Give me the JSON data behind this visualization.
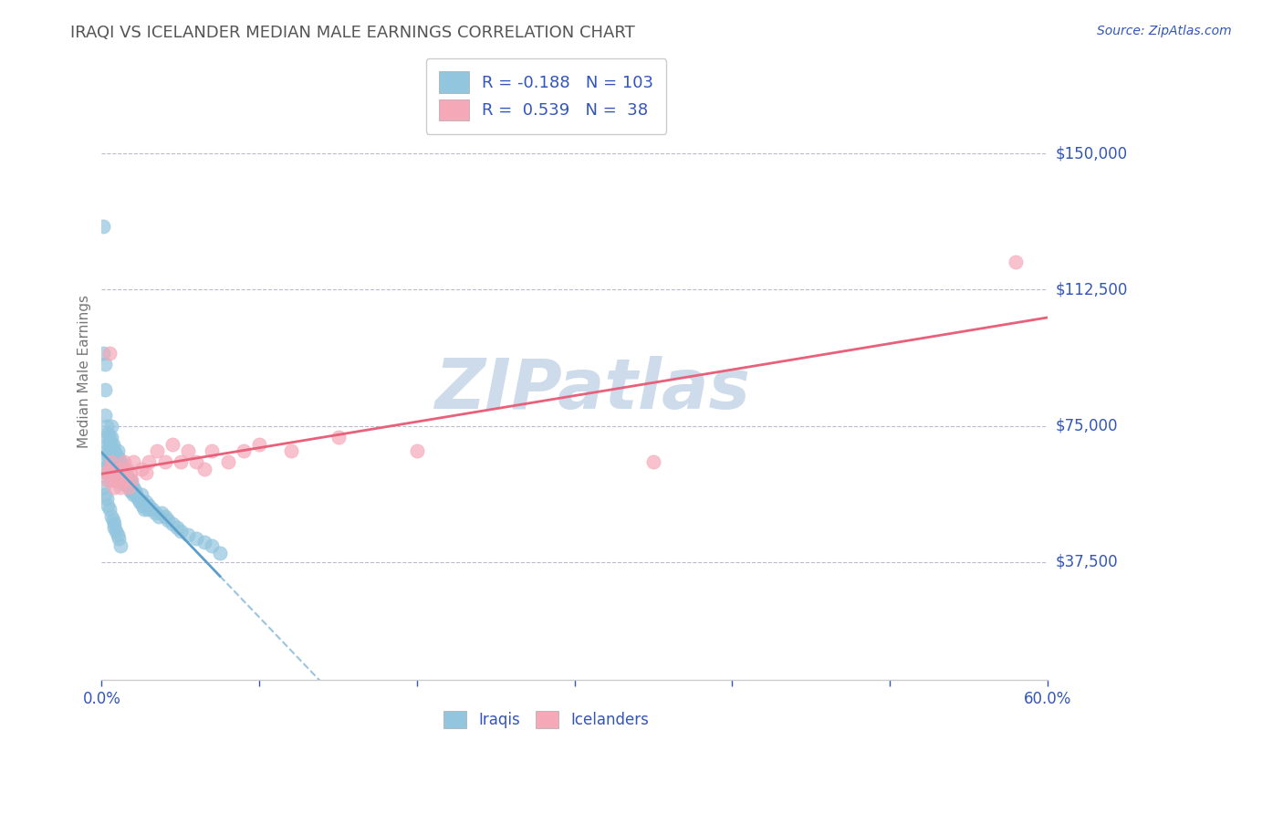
{
  "title": "IRAQI VS ICELANDER MEDIAN MALE EARNINGS CORRELATION CHART",
  "source_text": "Source: ZipAtlas.com",
  "ylabel": "Median Male Earnings",
  "xlim": [
    0.0,
    0.6
  ],
  "ylim": [
    5000,
    175000
  ],
  "yticks": [
    37500,
    75000,
    112500,
    150000
  ],
  "ytick_labels": [
    "$37,500",
    "$75,000",
    "$112,500",
    "$150,000"
  ],
  "xtick_labels": [
    "0.0%",
    "",
    "",
    "",
    "",
    "",
    "60.0%"
  ],
  "xticks": [
    0.0,
    0.1,
    0.2,
    0.3,
    0.4,
    0.5,
    0.6
  ],
  "iraqis_color": "#92C5DE",
  "icelanders_color": "#F4A8B8",
  "iraqis_line_color": "#5B9EC9",
  "icelanders_line_color": "#E8607A",
  "R_iraqis": -0.188,
  "N_iraqis": 103,
  "R_icelanders": 0.539,
  "N_icelanders": 38,
  "legend_label_iraqis": "Iraqis",
  "legend_label_icelanders": "Icelanders",
  "label_color": "#3355BB",
  "watermark_color": "#C5D5E8",
  "background_color": "#FFFFFF",
  "iraqis_x": [
    0.001,
    0.001,
    0.002,
    0.002,
    0.002,
    0.003,
    0.003,
    0.003,
    0.003,
    0.003,
    0.004,
    0.004,
    0.004,
    0.004,
    0.005,
    0.005,
    0.005,
    0.005,
    0.005,
    0.005,
    0.006,
    0.006,
    0.006,
    0.006,
    0.006,
    0.007,
    0.007,
    0.007,
    0.007,
    0.007,
    0.008,
    0.008,
    0.008,
    0.008,
    0.009,
    0.009,
    0.009,
    0.009,
    0.01,
    0.01,
    0.01,
    0.01,
    0.011,
    0.011,
    0.011,
    0.012,
    0.012,
    0.012,
    0.013,
    0.013,
    0.013,
    0.014,
    0.014,
    0.015,
    0.015,
    0.016,
    0.016,
    0.017,
    0.017,
    0.018,
    0.018,
    0.019,
    0.019,
    0.02,
    0.02,
    0.021,
    0.022,
    0.023,
    0.024,
    0.025,
    0.025,
    0.026,
    0.027,
    0.028,
    0.029,
    0.03,
    0.032,
    0.034,
    0.036,
    0.038,
    0.04,
    0.042,
    0.045,
    0.048,
    0.05,
    0.055,
    0.06,
    0.065,
    0.07,
    0.075,
    0.001,
    0.002,
    0.003,
    0.004,
    0.005,
    0.006,
    0.007,
    0.008,
    0.008,
    0.009,
    0.01,
    0.011,
    0.012
  ],
  "iraqis_y": [
    130000,
    95000,
    92000,
    85000,
    78000,
    75000,
    72000,
    68000,
    65000,
    62000,
    73000,
    70000,
    67000,
    64000,
    72000,
    70000,
    67000,
    65000,
    62000,
    60000,
    75000,
    72000,
    70000,
    67000,
    64000,
    70000,
    68000,
    65000,
    62000,
    60000,
    68000,
    65000,
    63000,
    60000,
    67000,
    65000,
    62000,
    60000,
    68000,
    65000,
    62000,
    60000,
    66000,
    64000,
    61000,
    65000,
    62000,
    60000,
    64000,
    62000,
    59000,
    63000,
    61000,
    62000,
    60000,
    61000,
    59000,
    60000,
    58000,
    60000,
    57000,
    59000,
    57000,
    58000,
    56000,
    57000,
    56000,
    55000,
    54000,
    56000,
    54000,
    53000,
    52000,
    54000,
    52000,
    53000,
    52000,
    51000,
    50000,
    51000,
    50000,
    49000,
    48000,
    47000,
    46000,
    45000,
    44000,
    43000,
    42000,
    40000,
    58000,
    56000,
    55000,
    53000,
    52000,
    50000,
    49000,
    48000,
    47000,
    46000,
    45000,
    44000,
    42000
  ],
  "icelanders_x": [
    0.003,
    0.004,
    0.005,
    0.006,
    0.007,
    0.008,
    0.009,
    0.01,
    0.011,
    0.012,
    0.013,
    0.014,
    0.015,
    0.016,
    0.017,
    0.018,
    0.019,
    0.02,
    0.025,
    0.028,
    0.03,
    0.035,
    0.04,
    0.045,
    0.05,
    0.055,
    0.06,
    0.065,
    0.07,
    0.08,
    0.09,
    0.1,
    0.12,
    0.15,
    0.2,
    0.35,
    0.58,
    0.005
  ],
  "icelanders_y": [
    62000,
    60000,
    63000,
    65000,
    60000,
    58000,
    62000,
    60000,
    63000,
    58000,
    62000,
    65000,
    60000,
    63000,
    58000,
    62000,
    60000,
    65000,
    63000,
    62000,
    65000,
    68000,
    65000,
    70000,
    65000,
    68000,
    65000,
    63000,
    68000,
    65000,
    68000,
    70000,
    68000,
    72000,
    68000,
    65000,
    120000,
    95000
  ]
}
